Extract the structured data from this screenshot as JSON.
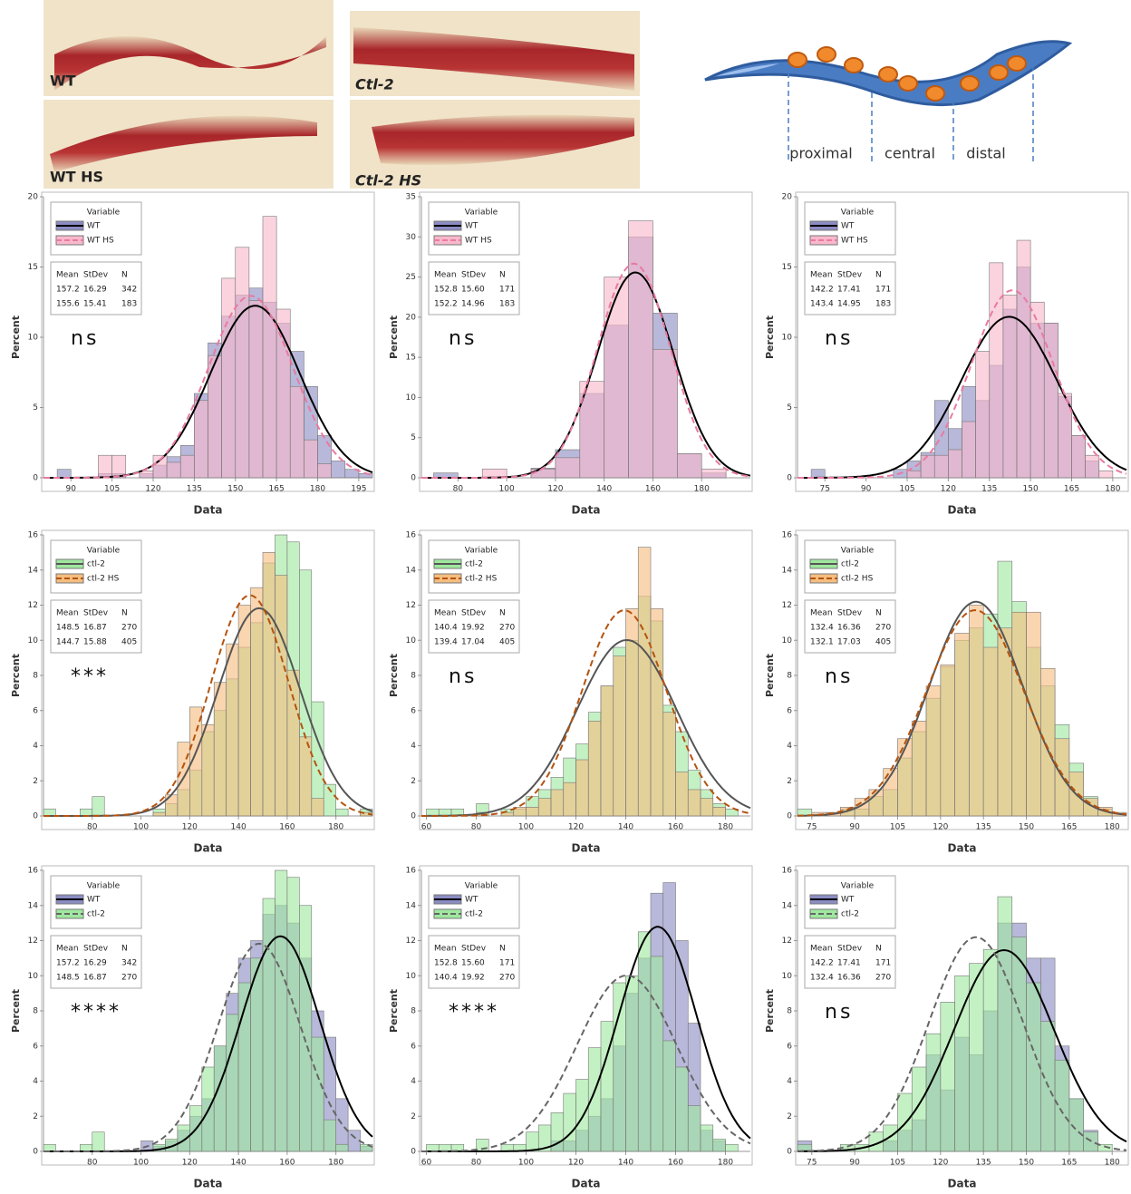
{
  "images": [
    {
      "label": "WT"
    },
    {
      "label": "Ctl-2"
    },
    {
      "label": "WT HS"
    },
    {
      "label": "Ctl-2 HS"
    }
  ],
  "diagram": {
    "labels": [
      "proximal",
      "central",
      "distal"
    ]
  },
  "chart_data": [
    {
      "type": "histogram",
      "annotation": "ns",
      "x_label": "Data",
      "y_label": "Percent",
      "legend_title": "Variable",
      "stats_header": [
        "Mean",
        "StDev",
        "N"
      ],
      "bins": [
        85,
        90,
        95,
        100,
        105,
        110,
        115,
        120,
        125,
        130,
        135,
        140,
        145,
        150,
        155,
        160,
        165,
        170,
        175,
        180,
        185,
        190,
        195,
        200
      ],
      "xlim": [
        80,
        200
      ],
      "xticks": [
        90,
        105,
        120,
        135,
        150,
        165,
        180,
        195
      ],
      "ylim": [
        0,
        20
      ],
      "yticks": [
        0,
        5,
        10,
        15,
        20
      ],
      "series": [
        {
          "name": "WT",
          "color": "#8c8cc4",
          "curve_color": "#000000",
          "curve_dash": false,
          "mean": 157.2,
          "stdev": 16.29,
          "n": 342,
          "values": [
            0.6,
            0,
            0,
            0.3,
            0.3,
            0,
            0.3,
            0.9,
            1.5,
            2.3,
            6,
            9.6,
            11.5,
            13,
            13.5,
            12.5,
            11,
            9,
            6.5,
            3,
            1.2,
            0.6,
            0.3
          ]
        },
        {
          "name": "WT HS",
          "color": "#f9b8cc",
          "curve_color": "#e87aa0",
          "curve_dash": true,
          "mean": 155.6,
          "stdev": 15.41,
          "n": 183,
          "values": [
            0,
            0,
            0,
            1.6,
            1.6,
            0,
            0.5,
            1.6,
            1.1,
            1.6,
            5.5,
            8.7,
            14.2,
            16.4,
            12.6,
            18.6,
            12,
            6.5,
            2.7,
            1,
            0,
            0,
            0
          ]
        }
      ]
    },
    {
      "type": "histogram",
      "annotation": "ns",
      "x_label": "Data",
      "y_label": "Percent",
      "legend_title": "Variable",
      "stats_header": [
        "Mean",
        "StDev",
        "N"
      ],
      "bins": [
        70,
        80,
        90,
        100,
        110,
        120,
        130,
        140,
        150,
        160,
        170,
        180,
        190
      ],
      "xlim": [
        65,
        200
      ],
      "xticks": [
        80,
        100,
        120,
        140,
        160,
        180
      ],
      "ylim": [
        0,
        35
      ],
      "yticks": [
        0,
        5,
        10,
        15,
        20,
        25,
        30,
        35
      ],
      "series": [
        {
          "name": "WT",
          "color": "#8c8cc4",
          "curve_color": "#000000",
          "curve_dash": false,
          "mean": 152.8,
          "stdev": {
            "value": 15.6,
            "label": "15.60"
          },
          "n": 171,
          "values": [
            0.6,
            0,
            0,
            0,
            1.2,
            3.5,
            10.5,
            19,
            30,
            20.5,
            3,
            0.6
          ]
        },
        {
          "name": "WT HS",
          "color": "#f9b8cc",
          "curve_color": "#e87aa0",
          "curve_dash": true,
          "mean": 152.2,
          "stdev": 14.96,
          "n": 183,
          "values": [
            0,
            0,
            1.1,
            0,
            1.1,
            2.5,
            12,
            25,
            32,
            16,
            3,
            1.1
          ]
        }
      ]
    },
    {
      "type": "histogram",
      "annotation": "ns",
      "x_label": "Data",
      "y_label": "Percent",
      "legend_title": "Variable",
      "stats_header": [
        "Mean",
        "StDev",
        "N"
      ],
      "bins": [
        70,
        75,
        80,
        85,
        90,
        95,
        100,
        105,
        110,
        115,
        120,
        125,
        130,
        135,
        140,
        145,
        150,
        155,
        160,
        165,
        170,
        175,
        180
      ],
      "xlim": [
        65,
        185
      ],
      "xticks": [
        75,
        90,
        105,
        120,
        135,
        150,
        165,
        180
      ],
      "ylim": [
        0,
        20
      ],
      "yticks": [
        0,
        5,
        10,
        15,
        20
      ],
      "series": [
        {
          "name": "WT",
          "color": "#8c8cc4",
          "curve_color": "#000000",
          "curve_dash": false,
          "mean": 142.2,
          "stdev": 17.41,
          "n": 171,
          "values": [
            0.6,
            0,
            0,
            0,
            0,
            0,
            0.6,
            1.2,
            1.8,
            5.5,
            3.5,
            6.5,
            5.5,
            8,
            12,
            15,
            11,
            11,
            5.8,
            3,
            1.2,
            0
          ]
        },
        {
          "name": "WT HS",
          "color": "#f9b8cc",
          "curve_color": "#e87aa0",
          "curve_dash": true,
          "mean": 143.4,
          "stdev": 14.95,
          "n": 183,
          "values": [
            0,
            0,
            0,
            0,
            0,
            0,
            0,
            0.5,
            1.6,
            1.6,
            2,
            4,
            9,
            15.3,
            13,
            16.9,
            12.5,
            11,
            6,
            3,
            1.6,
            0.5
          ]
        }
      ]
    },
    {
      "type": "histogram",
      "annotation": "***",
      "x_label": "Data",
      "y_label": "Percent",
      "legend_title": "Variable",
      "stats_header": [
        "Mean",
        "StDev",
        "N"
      ],
      "bins": [
        60,
        65,
        70,
        75,
        80,
        85,
        90,
        95,
        100,
        105,
        110,
        115,
        120,
        125,
        130,
        135,
        140,
        145,
        150,
        155,
        160,
        165,
        170,
        175,
        180,
        185,
        190,
        195
      ],
      "xlim": [
        60,
        195
      ],
      "xticks": [
        80,
        100,
        120,
        140,
        160,
        180
      ],
      "ylim": [
        0,
        16
      ],
      "yticks": [
        0,
        2,
        4,
        6,
        8,
        10,
        12,
        14,
        16
      ],
      "series": [
        {
          "name": "ctl-2",
          "color": "#9fe89f",
          "curve_color": "#555555",
          "curve_dash": false,
          "mean": 148.5,
          "stdev": 16.87,
          "n": 270,
          "values": [
            0.4,
            0,
            0,
            0.4,
            1.1,
            0,
            0,
            0,
            0,
            0.4,
            0.7,
            1.5,
            2.6,
            4.8,
            6,
            7.8,
            9.6,
            11,
            14.4,
            16,
            15.6,
            14,
            6.5,
            1.8,
            0.4,
            0,
            0.4
          ]
        },
        {
          "name": "ctl-2 HS",
          "color": "#f5bd80",
          "curve_color": "#b5530f",
          "curve_dash": true,
          "mean": 144.7,
          "stdev": 15.88,
          "n": 405,
          "values": [
            0,
            0,
            0,
            0,
            0,
            0,
            0,
            0,
            0,
            0.2,
            1.2,
            4.2,
            6.2,
            5.2,
            7.6,
            9.8,
            12,
            13,
            15,
            13.7,
            8.3,
            4.5,
            1,
            0,
            0,
            0,
            0.2
          ]
        }
      ]
    },
    {
      "type": "histogram",
      "annotation": "ns",
      "x_label": "Data",
      "y_label": "Percent",
      "legend_title": "Variable",
      "stats_header": [
        "Mean",
        "StDev",
        "N"
      ],
      "bins": [
        60,
        65,
        70,
        75,
        80,
        85,
        90,
        95,
        100,
        105,
        110,
        115,
        120,
        125,
        130,
        135,
        140,
        145,
        150,
        155,
        160,
        165,
        170,
        175,
        180,
        185,
        190
      ],
      "xlim": [
        58,
        190
      ],
      "xticks": [
        60,
        80,
        100,
        120,
        140,
        160,
        180
      ],
      "ylim": [
        0,
        16
      ],
      "yticks": [
        0,
        2,
        4,
        6,
        8,
        10,
        12,
        14,
        16
      ],
      "series": [
        {
          "name": "ctl-2",
          "color": "#9fe89f",
          "curve_color": "#555555",
          "curve_dash": false,
          "mean": 140.4,
          "stdev": 19.92,
          "n": 270,
          "values": [
            0.4,
            0.4,
            0.4,
            0,
            0.7,
            0,
            0.4,
            0.4,
            1.1,
            1.5,
            2.2,
            3.3,
            4.1,
            5.9,
            7.4,
            9.6,
            10,
            12.5,
            11.1,
            6.3,
            4.8,
            2.6,
            1.5,
            0.7,
            0.4,
            0
          ]
        },
        {
          "name": "ctl-2 HS",
          "color": "#f5bd80",
          "curve_color": "#b5530f",
          "curve_dash": true,
          "mean": 139.4,
          "stdev": 17.04,
          "n": 405,
          "values": [
            0,
            0,
            0,
            0,
            0.2,
            0,
            0.2,
            0.5,
            0.5,
            1,
            1.5,
            1.9,
            3.2,
            5.4,
            7.4,
            9.1,
            11.8,
            15.3,
            11.8,
            5.9,
            2.5,
            1.5,
            1,
            0.5,
            0,
            0
          ]
        }
      ]
    },
    {
      "type": "histogram",
      "annotation": "ns",
      "x_label": "Data",
      "y_label": "Percent",
      "legend_title": "Variable",
      "stats_header": [
        "Mean",
        "StDev",
        "N"
      ],
      "bins": [
        70,
        75,
        80,
        85,
        90,
        95,
        100,
        105,
        110,
        115,
        120,
        125,
        130,
        135,
        140,
        145,
        150,
        155,
        160,
        165,
        170,
        175,
        180,
        185
      ],
      "xlim": [
        70,
        185
      ],
      "xticks": [
        75,
        90,
        105,
        120,
        135,
        150,
        165,
        180
      ],
      "ylim": [
        0,
        16
      ],
      "yticks": [
        0,
        2,
        4,
        6,
        8,
        10,
        12,
        14,
        16
      ],
      "series": [
        {
          "name": "ctl-2",
          "color": "#9fe89f",
          "curve_color": "#555555",
          "curve_dash": false,
          "mean": 132.4,
          "stdev": 16.36,
          "n": 270,
          "values": [
            0.4,
            0,
            0,
            0.4,
            0.4,
            1.1,
            1.5,
            3.3,
            4.8,
            6.7,
            8.5,
            10,
            10.7,
            11.5,
            14.5,
            12.2,
            9.6,
            7.4,
            5.2,
            3,
            1.1,
            0.4,
            0
          ]
        },
        {
          "name": "ctl-2 HS",
          "color": "#f5bd80",
          "curve_color": "#b5530f",
          "curve_dash": true,
          "mean": 132.1,
          "stdev": 17.03,
          "n": 405,
          "values": [
            0,
            0.2,
            0.2,
            0.5,
            1,
            1.5,
            2.7,
            4.4,
            5.4,
            7.4,
            8.6,
            10.4,
            12,
            9.6,
            10.7,
            11.6,
            11.6,
            8.4,
            4.4,
            2.5,
            1,
            0.5,
            0.2
          ]
        }
      ]
    },
    {
      "type": "histogram",
      "annotation": "****",
      "x_label": "Data",
      "y_label": "Percent",
      "legend_title": "Variable",
      "stats_header": [
        "Mean",
        "StDev",
        "N"
      ],
      "bins": [
        60,
        65,
        70,
        75,
        80,
        85,
        90,
        95,
        100,
        105,
        110,
        115,
        120,
        125,
        130,
        135,
        140,
        145,
        150,
        155,
        160,
        165,
        170,
        175,
        180,
        185,
        190,
        195
      ],
      "xlim": [
        60,
        195
      ],
      "xticks": [
        80,
        100,
        120,
        140,
        160,
        180
      ],
      "ylim": [
        0,
        16
      ],
      "yticks": [
        0,
        2,
        4,
        6,
        8,
        10,
        12,
        14,
        16
      ],
      "series": [
        {
          "name": "WT",
          "color": "#8c8cc4",
          "curve_color": "#000000",
          "curve_dash": false,
          "mean": 157.2,
          "stdev": 16.29,
          "n": 342,
          "values": [
            0,
            0,
            0,
            0,
            0,
            0,
            0,
            0,
            0.6,
            0.3,
            0.6,
            1.2,
            2,
            3,
            6,
            9,
            11,
            12,
            13.5,
            14,
            13,
            11,
            8,
            6.5,
            3,
            1.2,
            0.3
          ]
        },
        {
          "name": "ctl-2",
          "color": "#9fe89f",
          "curve_color": "#666666",
          "curve_dash": true,
          "mean": 148.5,
          "stdev": 16.87,
          "n": 270,
          "values": [
            0.4,
            0,
            0,
            0.4,
            1.1,
            0,
            0,
            0,
            0,
            0.4,
            0.7,
            1.5,
            2.6,
            4.8,
            6,
            7.8,
            9.6,
            11,
            14.4,
            16,
            15.6,
            14,
            6.5,
            1.8,
            0.4,
            0,
            0.4
          ]
        }
      ]
    },
    {
      "type": "histogram",
      "annotation": "****",
      "x_label": "Data",
      "y_label": "Percent",
      "legend_title": "Variable",
      "stats_header": [
        "Mean",
        "StDev",
        "N"
      ],
      "bins": [
        60,
        65,
        70,
        75,
        80,
        85,
        90,
        95,
        100,
        105,
        110,
        115,
        120,
        125,
        130,
        135,
        140,
        145,
        150,
        155,
        160,
        165,
        170,
        175,
        180,
        185,
        190
      ],
      "xlim": [
        58,
        190
      ],
      "xticks": [
        60,
        80,
        100,
        120,
        140,
        160,
        180
      ],
      "ylim": [
        0,
        16
      ],
      "yticks": [
        0,
        2,
        4,
        6,
        8,
        10,
        12,
        14,
        16
      ],
      "series": [
        {
          "name": "WT",
          "color": "#8c8cc4",
          "curve_color": "#000000",
          "curve_dash": false,
          "mean": 152.8,
          "stdev": {
            "value": 15.6,
            "label": "15.60"
          },
          "n": 171,
          "values": [
            0,
            0,
            0,
            0,
            0,
            0,
            0,
            0,
            0,
            0,
            0.6,
            0.6,
            1.2,
            2,
            3,
            6,
            9,
            11,
            14.7,
            15.3,
            12,
            7.3,
            1.2,
            0.6,
            0,
            0
          ]
        },
        {
          "name": "ctl-2",
          "color": "#9fe89f",
          "curve_color": "#666666",
          "curve_dash": true,
          "mean": 140.4,
          "stdev": 19.92,
          "n": 270,
          "values": [
            0.4,
            0.4,
            0.4,
            0,
            0.7,
            0,
            0.4,
            0.4,
            1.1,
            1.5,
            2.2,
            3.3,
            4.1,
            5.9,
            7.4,
            9.6,
            10,
            12.5,
            11.1,
            6.3,
            4.8,
            2.6,
            1.5,
            0.7,
            0.4,
            0
          ]
        }
      ]
    },
    {
      "type": "histogram",
      "annotation": "ns",
      "x_label": "Data",
      "y_label": "Percent",
      "legend_title": "Variable",
      "stats_header": [
        "Mean",
        "StDev",
        "N"
      ],
      "bins": [
        70,
        75,
        80,
        85,
        90,
        95,
        100,
        105,
        110,
        115,
        120,
        125,
        130,
        135,
        140,
        145,
        150,
        155,
        160,
        165,
        170,
        175,
        180,
        185
      ],
      "xlim": [
        70,
        185
      ],
      "xticks": [
        75,
        90,
        105,
        120,
        135,
        150,
        165,
        180
      ],
      "ylim": [
        0,
        16
      ],
      "yticks": [
        0,
        2,
        4,
        6,
        8,
        10,
        12,
        14,
        16
      ],
      "series": [
        {
          "name": "WT",
          "color": "#8c8cc4",
          "curve_color": "#000000",
          "curve_dash": false,
          "mean": 142.2,
          "stdev": 17.41,
          "n": 171,
          "values": [
            0.6,
            0,
            0,
            0,
            0,
            0,
            0.6,
            1.2,
            1.8,
            5.5,
            3.5,
            6.5,
            5.5,
            8,
            13,
            13,
            11,
            11,
            6,
            3,
            1.2,
            0,
            0
          ]
        },
        {
          "name": "ctl-2",
          "color": "#9fe89f",
          "curve_color": "#666666",
          "curve_dash": true,
          "mean": 132.4,
          "stdev": 16.36,
          "n": 270,
          "values": [
            0.4,
            0,
            0,
            0.4,
            0.4,
            1.1,
            1.5,
            3.3,
            4.8,
            6.7,
            8.5,
            10,
            10.7,
            11.5,
            14.5,
            12.2,
            9.6,
            7.4,
            5.2,
            3,
            1.1,
            0.4,
            0
          ]
        }
      ]
    }
  ]
}
